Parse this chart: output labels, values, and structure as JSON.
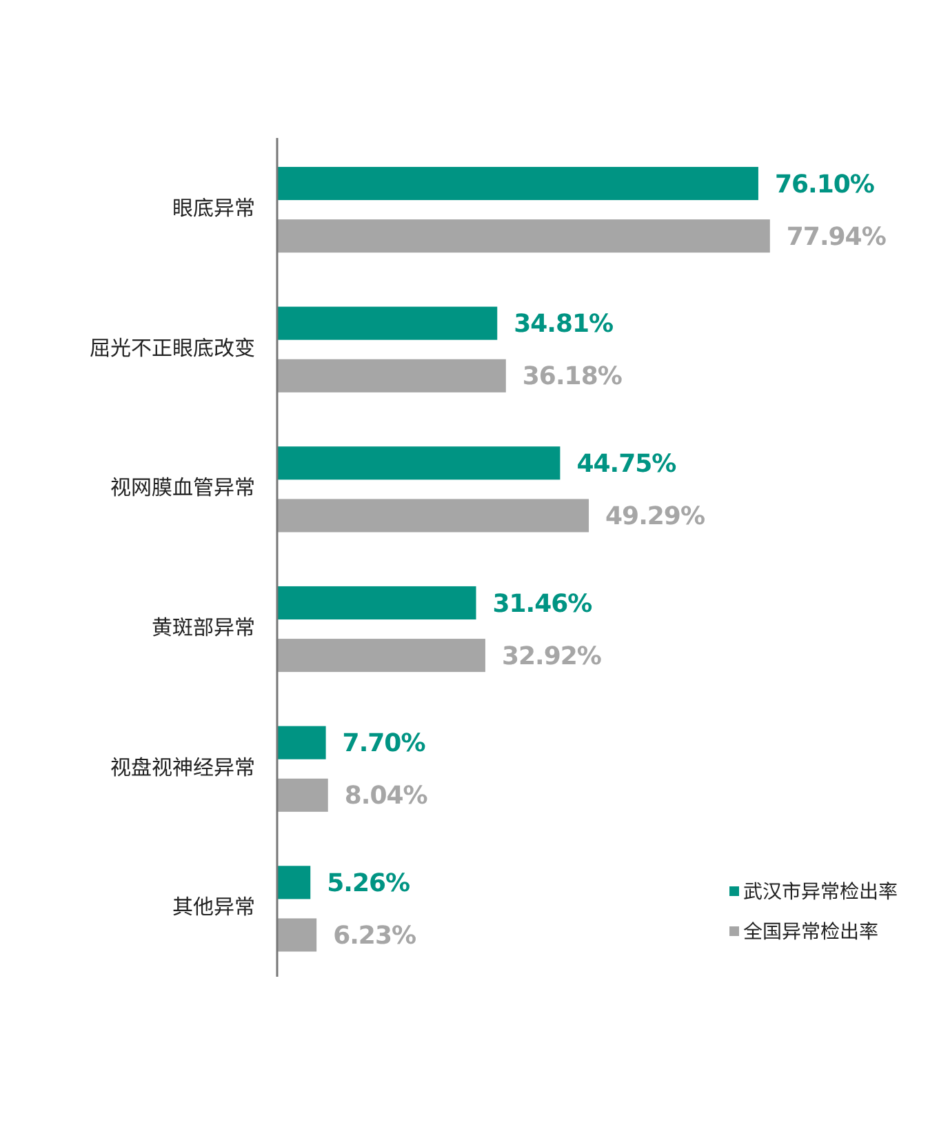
{
  "chart_data": {
    "type": "bar",
    "orientation": "horizontal",
    "categories": [
      "眼底异常",
      "屈光不正眼底改变",
      "视网膜血管异常",
      "黄斑部异常",
      "视盘视神经异常",
      "其他异常"
    ],
    "series": [
      {
        "name": "武汉市异常检出率",
        "color": "#009483",
        "values": [
          76.1,
          34.81,
          44.75,
          31.46,
          7.7,
          5.26
        ],
        "value_labels": [
          "76.10%",
          "34.81%",
          "44.75%",
          "31.46%",
          "7.70%",
          "5.26%"
        ]
      },
      {
        "name": "全国异常检出率",
        "color": "#a6a6a6",
        "values": [
          77.94,
          36.18,
          49.29,
          32.92,
          8.04,
          6.23
        ],
        "value_labels": [
          "77.94%",
          "36.18%",
          "49.29%",
          "32.92%",
          "8.04%",
          "6.23%"
        ]
      }
    ],
    "tick_labels": "y",
    "legend": "bottom right"
  }
}
